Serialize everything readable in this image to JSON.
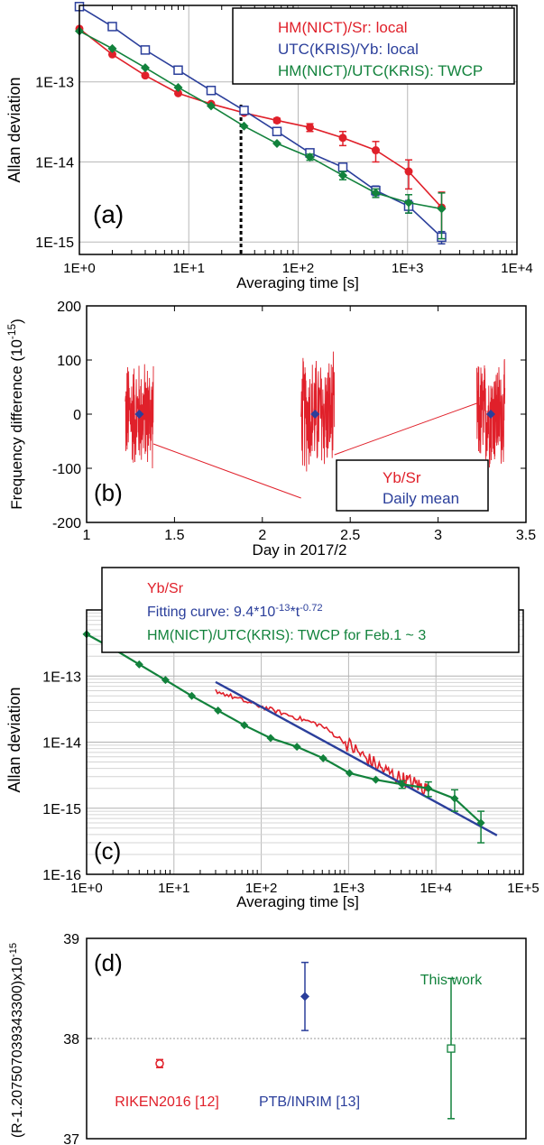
{
  "chart_data": [
    {
      "panel": "(a)",
      "type": "line",
      "log_x": true,
      "log_y": true,
      "xlabel": "Averaging time [s]",
      "ylabel": "Allan deviation",
      "xlim": [
        1,
        10000
      ],
      "ylim": [
        7e-16,
        9e-13
      ],
      "xticks": [
        "1E+0",
        "1E+1",
        "1E+2",
        "1E+3",
        "1E+4"
      ],
      "yticks": [
        "1E-15",
        "1E-14",
        "1E-13"
      ],
      "grid": true,
      "legend": "top-right",
      "vline_x": 30,
      "series": [
        {
          "name": "HM(NICT)/Sr: local",
          "color": "#e0202a",
          "marker": "circle",
          "x": [
            1,
            2,
            4,
            8,
            16,
            32,
            64,
            128,
            256,
            512,
            1024,
            2048
          ],
          "y": [
            4.6e-13,
            2.2e-13,
            1.2e-13,
            7.2e-14,
            5.3e-14,
            4.1e-14,
            3.3e-14,
            2.7e-14,
            2e-14,
            1.4e-14,
            7.6e-15,
            2.7e-15
          ],
          "err": [
            0,
            0,
            0,
            0,
            0,
            0,
            2e-15,
            3e-15,
            4e-15,
            4e-15,
            3e-15,
            1.5e-15
          ]
        },
        {
          "name": "UTC(KRIS)/Yb: local",
          "color": "#2b3f9b",
          "marker": "square",
          "x": [
            1,
            2,
            4,
            8,
            16,
            32,
            64,
            128,
            256,
            512,
            1024,
            2048
          ],
          "y": [
            8.7e-13,
            4.9e-13,
            2.5e-13,
            1.4e-13,
            7.8e-14,
            4.4e-14,
            2.4e-14,
            1.3e-14,
            8.6e-15,
            4.4e-15,
            2.8e-15,
            1.15e-15
          ],
          "err": [
            0,
            0,
            0,
            0,
            0,
            0,
            0,
            1e-15,
            1e-15,
            6e-16,
            5e-16,
            2e-16
          ]
        },
        {
          "name": "HM(NICT)/UTC(KRIS): TWCP",
          "color": "#12823c",
          "marker": "diamond",
          "x": [
            1,
            2,
            4,
            8,
            16,
            32,
            64,
            128,
            256,
            512,
            1024,
            2048
          ],
          "y": [
            4.3e-13,
            2.6e-13,
            1.5e-13,
            8.5e-14,
            5e-14,
            2.8e-14,
            1.7e-14,
            1.15e-14,
            6.8e-15,
            4.1e-15,
            3.1e-15,
            2.6e-15
          ],
          "err": [
            0,
            0,
            0,
            0,
            0,
            0,
            0,
            1e-15,
            8e-16,
            5e-16,
            8e-16,
            1.5e-15
          ]
        }
      ]
    },
    {
      "panel": "(b)",
      "type": "line",
      "xlabel": "Day in 2017/2",
      "ylabel": "Frequency difference (10",
      "ylabel_sup": "-15",
      "ylabel_tail": ")",
      "xlim": [
        1,
        3.5
      ],
      "ylim": [
        -200,
        200
      ],
      "xticks": [
        1,
        1.5,
        2,
        2.5,
        3,
        3.5
      ],
      "yticks": [
        -200,
        -100,
        0,
        100,
        200
      ],
      "legend": "bottom-right",
      "series": [
        {
          "name": "Yb/Sr",
          "color": "#e0202a",
          "type": "noise",
          "segments": [
            {
              "x": [
                1.22,
                1.38
              ],
              "amp": 110
            },
            {
              "x": [
                2.22,
                2.41
              ],
              "amp": 120
            },
            {
              "x": [
                3.22,
                3.38
              ],
              "amp": 110
            }
          ],
          "links": [
            {
              "x": [
                1.38,
                2.22
              ],
              "y": [
                -55,
                -155
              ]
            },
            {
              "x": [
                2.41,
                3.22
              ],
              "y": [
                -75,
                20
              ]
            }
          ]
        },
        {
          "name": "Daily mean",
          "color": "#2b3f9b",
          "marker": "diamond",
          "x": [
            1.3,
            2.3,
            3.3
          ],
          "y": [
            0,
            0,
            0
          ]
        }
      ]
    },
    {
      "panel": "(c)",
      "type": "line",
      "log_x": true,
      "log_y": true,
      "xlabel": "Averaging time [s]",
      "ylabel": "Allan deviation",
      "xlim": [
        1,
        100000
      ],
      "ylim": [
        1e-16,
        1e-12
      ],
      "xticks": [
        "1E+0",
        "1E+1",
        "1E+2",
        "1E+3",
        "1E+4",
        "1E+5"
      ],
      "yticks": [
        "1E-16",
        "1E-15",
        "1E-14",
        "1E-13"
      ],
      "grid": true,
      "legend": "top",
      "series": [
        {
          "name": "Yb/Sr",
          "color": "#e0202a",
          "type": "noisy",
          "x": [
            30,
            60,
            120,
            240,
            480,
            960,
            1500,
            2500,
            4000,
            6000,
            8000
          ],
          "y": [
            6e-14,
            4.3e-14,
            3.2e-14,
            2.4e-14,
            1.8e-14,
            9.5e-15,
            6e-15,
            3.8e-15,
            2.8e-15,
            2.3e-15,
            1.9e-15
          ]
        },
        {
          "name": "Fitting curve: 9.4*10",
          "name_sup1": "-13",
          "name_mid": "*t",
          "name_sup2": "-0.72",
          "color": "#2b3f9b",
          "type": "fit",
          "a": 9.4e-13,
          "b": -0.72,
          "x_range": [
            30,
            50000
          ]
        },
        {
          "name": "HM(NICT)/UTC(KRIS): TWCP for Feb.1 ~ 3",
          "color": "#12823c",
          "marker": "diamond",
          "x": [
            1,
            2,
            4,
            8,
            16,
            32,
            64,
            128,
            256,
            512,
            1024,
            2048,
            4096,
            8192,
            16384,
            32768
          ],
          "y": [
            4.3e-13,
            2.6e-13,
            1.5e-13,
            8.7e-14,
            5e-14,
            3e-14,
            1.8e-14,
            1.15e-14,
            8.5e-15,
            5.7e-15,
            3.4e-15,
            2.7e-15,
            2.3e-15,
            2e-15,
            1.4e-15,
            6e-16
          ],
          "err": [
            0,
            0,
            0,
            0,
            0,
            0,
            0,
            0,
            0,
            0,
            0,
            0,
            3e-16,
            5e-16,
            5e-16,
            3e-16
          ]
        }
      ]
    },
    {
      "panel": "(d)",
      "type": "scatter",
      "ylabel": "(R-1.207507039343300)x10",
      "ylabel_sup": "-15",
      "ylim": [
        37,
        39
      ],
      "yticks": [
        37,
        38,
        39
      ],
      "points": [
        {
          "label": "RIKEN2016 [12]",
          "value": 37.75,
          "err": 0.04,
          "color": "#e0202a",
          "marker": "circle-open"
        },
        {
          "label": "PTB/INRIM [13]",
          "value": 38.42,
          "err": 0.34,
          "color": "#2b3f9b",
          "marker": "diamond"
        },
        {
          "label": "This work",
          "value": 37.9,
          "err": 0.7,
          "color": "#12823c",
          "marker": "square-open"
        }
      ]
    }
  ]
}
